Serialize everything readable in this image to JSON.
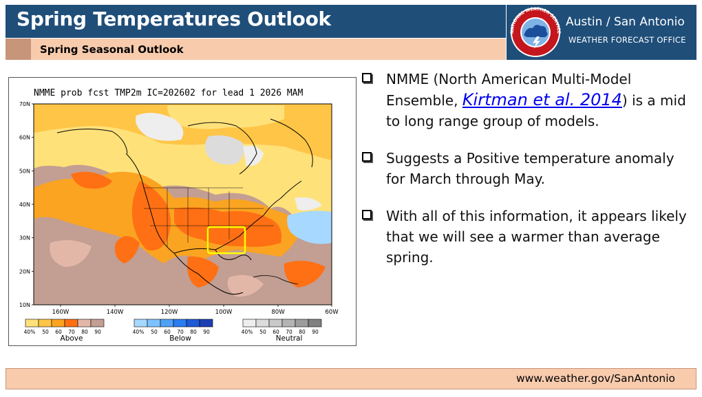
{
  "header": {
    "title": "Spring Temperatures Outlook",
    "subtitle": "Spring Seasonal Outlook",
    "office_name": "Austin / San Antonio",
    "office_sub": "WEATHER FORECAST OFFICE",
    "logo_icon": "nws-logo-icon",
    "logo_text": "NATIONAL WEATHER SERVICE"
  },
  "figure": {
    "title": "NMME prob fcst TMP2m IC=202602 for lead 1 2026 MAM",
    "lat_labels": [
      "70N",
      "60N",
      "50N",
      "40N",
      "30N",
      "20N",
      "10N"
    ],
    "lon_labels": [
      "160W",
      "140W",
      "120W",
      "100W",
      "80W",
      "60W"
    ],
    "legend": [
      {
        "name": "Above",
        "ticks": [
          "40%",
          "50",
          "60",
          "70",
          "80",
          "90"
        ],
        "colors": [
          "#ffe17a",
          "#ffc546",
          "#fba421",
          "#ff7014",
          "#e3b7a8",
          "#c39e92"
        ]
      },
      {
        "name": "Below",
        "ticks": [
          "40%",
          "50",
          "60",
          "70",
          "80",
          "90"
        ],
        "colors": [
          "#a7d8ff",
          "#7ec2ff",
          "#4fa1f3",
          "#2a7cef",
          "#1e59d6",
          "#1d3fb4"
        ]
      },
      {
        "name": "Neutral",
        "ticks": [
          "40%",
          "50",
          "60",
          "70",
          "80",
          "90"
        ],
        "colors": [
          "#eeeeee",
          "#dcdcdc",
          "#c9c9c9",
          "#b4b4b4",
          "#9c9c9c",
          "#808080"
        ]
      }
    ],
    "highlight_color": "#ffff00"
  },
  "bullets": [
    {
      "before": "NMME (North American Multi-Model Ensemble, ",
      "link": "Kirtman et al. 2014",
      "after": ") is a mid to long range group of models."
    },
    {
      "before": "Suggests a Positive temperature anomaly for March through May.",
      "link": "",
      "after": ""
    },
    {
      "before": "With all of this information, it appears likely that we will see a warmer than average spring.",
      "link": "",
      "after": ""
    }
  ],
  "footer": {
    "url": "www.weather.gov/SanAntonio"
  }
}
